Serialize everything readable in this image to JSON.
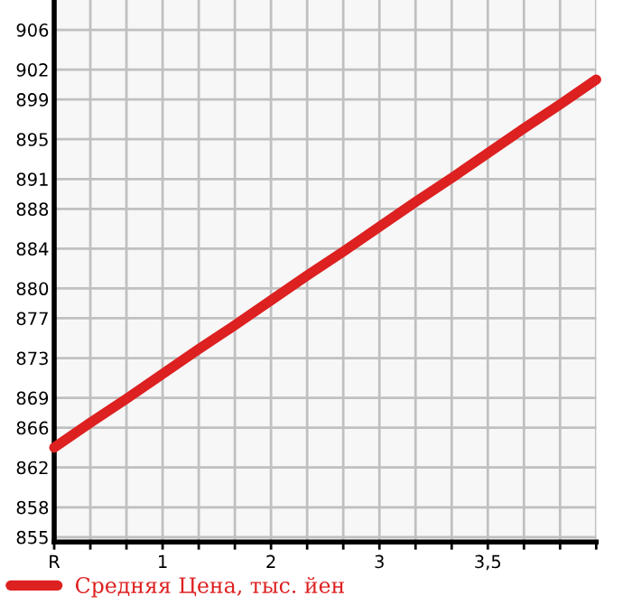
{
  "chart_data": {
    "type": "line",
    "categories": [
      "R",
      null,
      null,
      "1",
      null,
      null,
      "2",
      null,
      null,
      "3",
      null,
      null,
      "3,5",
      null,
      null,
      null
    ],
    "series": [
      {
        "name": "Средняя Цена, тыс. йен",
        "color": "#dd2020",
        "values": [
          864,
          866.5,
          868.9,
          871.4,
          873.9,
          876.3,
          878.8,
          881.3,
          883.7,
          886.2,
          888.7,
          891.1,
          893.6,
          896.1,
          898.5,
          901
        ]
      }
    ],
    "ylim": [
      854.5,
      909
    ],
    "yticks": [
      855,
      858,
      862,
      866,
      869,
      873,
      877,
      880,
      884,
      888,
      891,
      895,
      899,
      902,
      906
    ],
    "grid": true,
    "legend": "bottom",
    "marker": "none",
    "line_style": "solid"
  }
}
